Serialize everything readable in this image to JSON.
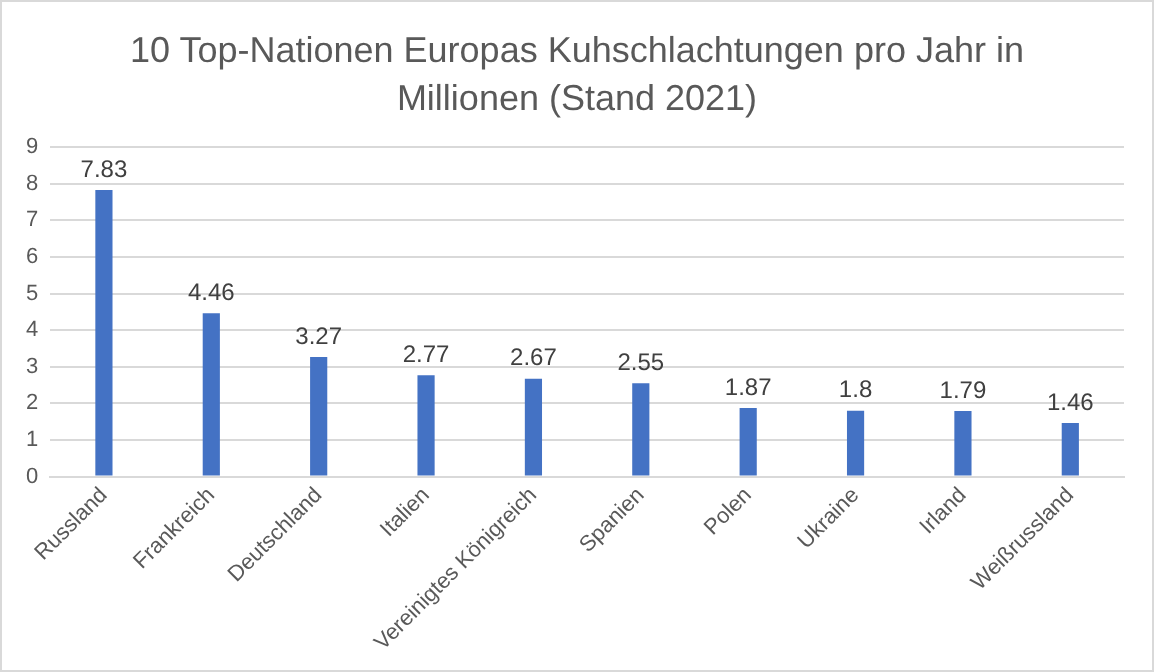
{
  "chart_data": {
    "type": "bar",
    "title": "10 Top-Nationen Europas Kuhschlachtungen pro Jahr in Millionen (Stand 2021)",
    "categories": [
      "Russland",
      "Frankreich",
      "Deutschland",
      "Italien",
      "Vereinigtes Königreich",
      "Spanien",
      "Polen",
      "Ukraine",
      "Irland",
      "Weißrussland"
    ],
    "values": [
      7.83,
      4.46,
      3.27,
      2.77,
      2.67,
      2.55,
      1.87,
      1.8,
      1.79,
      1.46
    ],
    "color": "#4472c4",
    "ylim": [
      0,
      9
    ],
    "yticks": [
      0,
      1,
      2,
      3,
      4,
      5,
      6,
      7,
      8,
      9
    ],
    "grid": "y",
    "data_labels": true
  }
}
